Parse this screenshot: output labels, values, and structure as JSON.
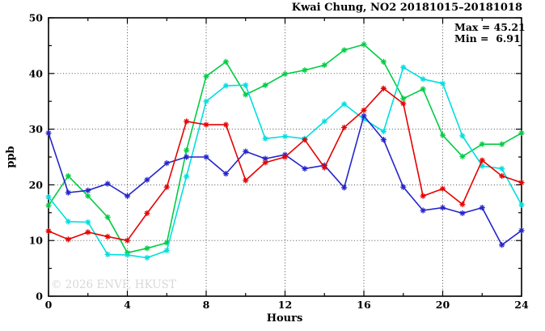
{
  "title": "Kwai Chung, NO2 20181015–20181018",
  "annotation": {
    "max_label": "Max = 45.21",
    "min_label": "Min =  6.91"
  },
  "watermark": "© 2026 ENVF, HKUST",
  "chart_data": {
    "type": "line",
    "title": "Kwai Chung, NO2 20181015–20181018",
    "xlabel": "Hours",
    "ylabel": "ppb",
    "xlim": [
      0,
      24
    ],
    "ylim": [
      0,
      50
    ],
    "x_major_ticks": [
      0,
      4,
      8,
      12,
      16,
      20,
      24
    ],
    "x_minor_ticks": [
      2,
      6,
      10,
      14,
      18,
      22
    ],
    "y_major_ticks": [
      0,
      10,
      20,
      30,
      40,
      50
    ],
    "y_minor_ticks": [
      5,
      15,
      25,
      35,
      45
    ],
    "grid": true,
    "legend": "none",
    "marker": "asterisk",
    "stats": {
      "max": 45.21,
      "min": 6.91
    },
    "x": [
      0,
      1,
      2,
      3,
      4,
      5,
      6,
      7,
      8,
      9,
      10,
      11,
      12,
      13,
      14,
      15,
      16,
      17,
      18,
      19,
      20,
      21,
      22,
      23,
      24
    ],
    "series": [
      {
        "name": "green-series",
        "color": "#00cc44",
        "values": [
          16.3,
          21.6,
          18.0,
          14.2,
          7.8,
          8.6,
          9.6,
          26.2,
          39.5,
          42.1,
          36.2,
          37.9,
          39.9,
          40.6,
          41.5,
          44.2,
          45.21,
          42.1,
          35.5,
          37.2,
          28.9,
          25.1,
          27.3,
          27.3,
          29.3
        ]
      },
      {
        "name": "cyan-series",
        "color": "#00dede",
        "values": [
          17.8,
          13.4,
          13.3,
          7.5,
          7.4,
          6.91,
          8.2,
          21.5,
          35.0,
          37.8,
          37.9,
          28.3,
          28.7,
          28.3,
          31.4,
          34.5,
          31.8,
          29.6,
          41.1,
          39.0,
          38.2,
          28.8,
          23.4,
          22.9,
          16.4
        ]
      },
      {
        "name": "blue-series",
        "color": "#2424cc",
        "values": [
          29.3,
          18.6,
          19.0,
          20.2,
          18.0,
          20.9,
          23.9,
          25.0,
          25.0,
          22.0,
          26.0,
          24.7,
          25.4,
          22.9,
          23.5,
          19.5,
          32.4,
          28.1,
          19.6,
          15.4,
          15.9,
          14.9,
          15.9,
          9.2,
          11.8
        ]
      },
      {
        "name": "red-series",
        "color": "#e60000",
        "values": [
          11.7,
          10.2,
          11.5,
          10.7,
          10.0,
          14.9,
          19.6,
          31.4,
          30.8,
          30.8,
          20.8,
          24.0,
          25.0,
          28.1,
          23.1,
          30.3,
          33.4,
          37.3,
          34.6,
          18.0,
          19.3,
          16.5,
          24.4,
          21.6,
          20.4
        ]
      }
    ]
  }
}
